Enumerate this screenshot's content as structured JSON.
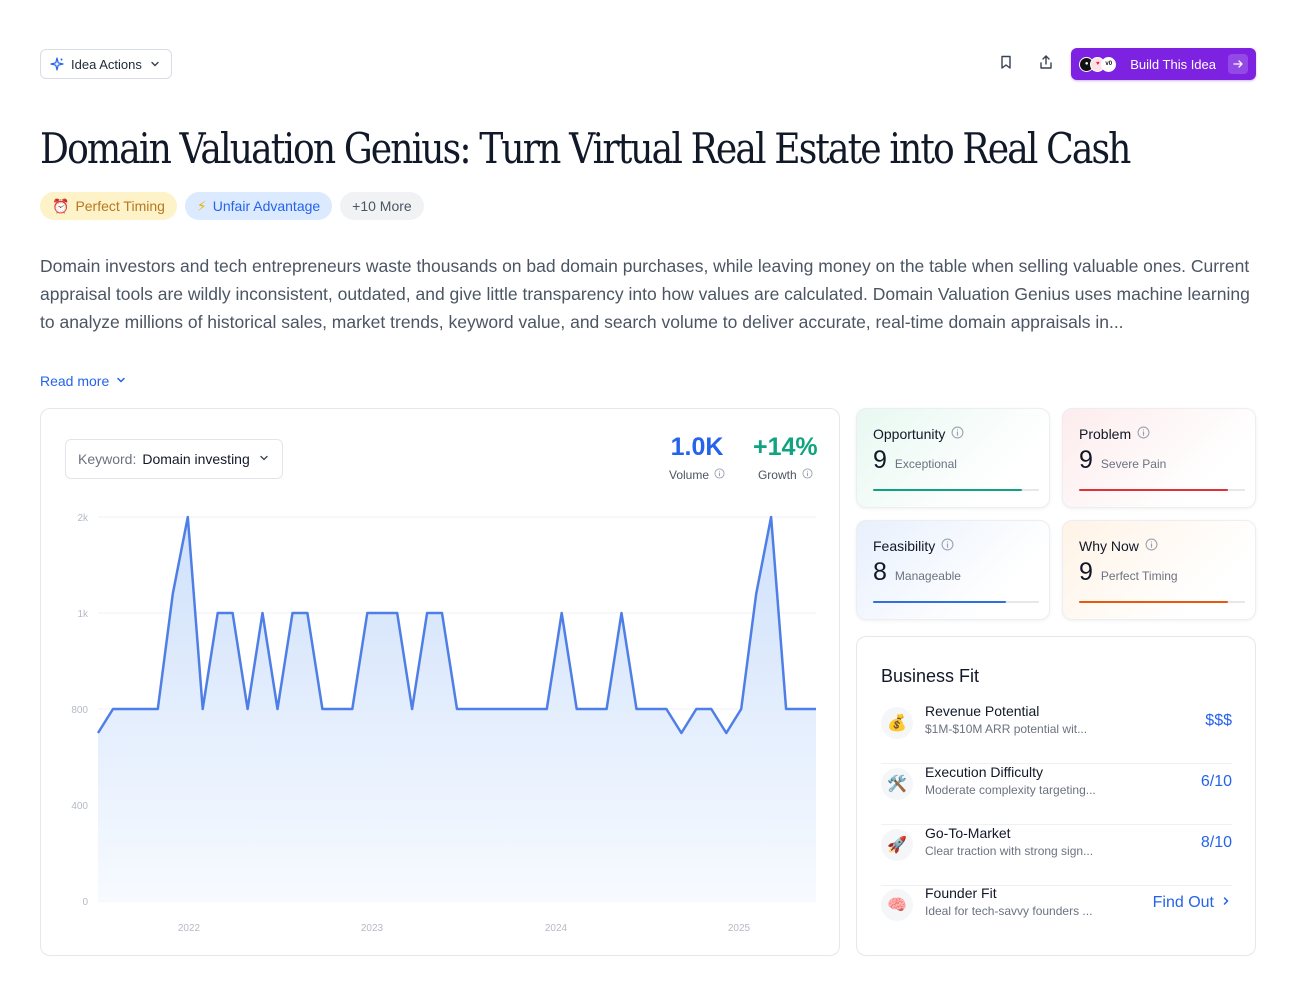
{
  "toolbar": {
    "idea_actions_label": "Idea Actions",
    "build_label": "Build This Idea",
    "logo_marks": [
      "dark-logo",
      "heart-logo",
      "v0-logo"
    ]
  },
  "title": "Domain Valuation Genius: Turn Virtual Real Estate into Real Cash",
  "tags": [
    {
      "icon": "alarm-clock-icon",
      "label": "Perfect Timing"
    },
    {
      "icon": "lightning-icon",
      "label": "Unfair Advantage"
    },
    {
      "label": "+10 More"
    }
  ],
  "description": "Domain investors and tech entrepreneurs waste thousands on bad domain purchases, while leaving money on the table when selling valuable ones. Current appraisal tools are wildly inconsistent, outdated, and give little transparency into how values are calculated. Domain Valuation Genius uses machine learning to analyze millions of historical sales, market trends, keyword value, and search volume to deliver accurate, real-time domain appraisals in...",
  "read_more_label": "Read more",
  "keyword": {
    "label": "Keyword:",
    "value": "Domain investing"
  },
  "stats": {
    "volume": {
      "value": "1.0K",
      "label": "Volume"
    },
    "growth": {
      "value": "+14%",
      "label": "Growth"
    }
  },
  "chart_data": {
    "type": "area",
    "y_ticks": [
      "0",
      "400",
      "800",
      "1k",
      "2k"
    ],
    "x_ticks": [
      "2022",
      "2023",
      "2024",
      "2025"
    ],
    "colors": {
      "line": "#4f7fe6",
      "fill_top": "#cfe1fb",
      "fill_bottom": "#f7faff"
    },
    "values": [
      700,
      800,
      800,
      800,
      800,
      1100,
      1500,
      800,
      1000,
      1000,
      800,
      1000,
      800,
      1000,
      1000,
      800,
      800,
      800,
      1000,
      1000,
      1000,
      800,
      1000,
      1000,
      800,
      800,
      800,
      800,
      800,
      800,
      800,
      1000,
      800,
      800,
      800,
      1000,
      800,
      800,
      800,
      700,
      800,
      800,
      700,
      800,
      1100,
      1500,
      800,
      800,
      800
    ],
    "notes": "values in data units on a non-linear tick scale (0,400,800,1k,2k); 2k ≈ peak"
  },
  "scores": [
    {
      "title": "Opportunity",
      "score": "9",
      "word": "Exceptional",
      "fraction": 0.9,
      "color": "#10a37f",
      "bg_from": "#e8f8f1"
    },
    {
      "title": "Problem",
      "score": "9",
      "word": "Severe Pain",
      "fraction": 0.9,
      "color": "#e0313b",
      "bg_from": "#fdeced"
    },
    {
      "title": "Feasibility",
      "score": "8",
      "word": "Manageable",
      "fraction": 0.8,
      "color": "#2f6fde",
      "bg_from": "#e8f0fd"
    },
    {
      "title": "Why Now",
      "score": "9",
      "word": "Perfect Timing",
      "fraction": 0.9,
      "color": "#e8590c",
      "bg_from": "#fff3e6"
    }
  ],
  "business_fit": {
    "title": "Business Fit",
    "rows": [
      {
        "icon": "money-bag-icon",
        "name": "Revenue Potential",
        "sub": "$1M-$10M ARR potential wit...",
        "value": "$$$"
      },
      {
        "icon": "hammer-wrench-icon",
        "name": "Execution Difficulty",
        "sub": "Moderate complexity targeting...",
        "value": "6/10"
      },
      {
        "icon": "rocket-icon",
        "name": "Go-To-Market",
        "sub": "Clear traction with strong sign...",
        "value": "8/10"
      },
      {
        "icon": "brain-icon",
        "name": "Founder Fit",
        "sub": "Ideal for tech-savvy founders ...",
        "value": "Find Out"
      }
    ]
  }
}
